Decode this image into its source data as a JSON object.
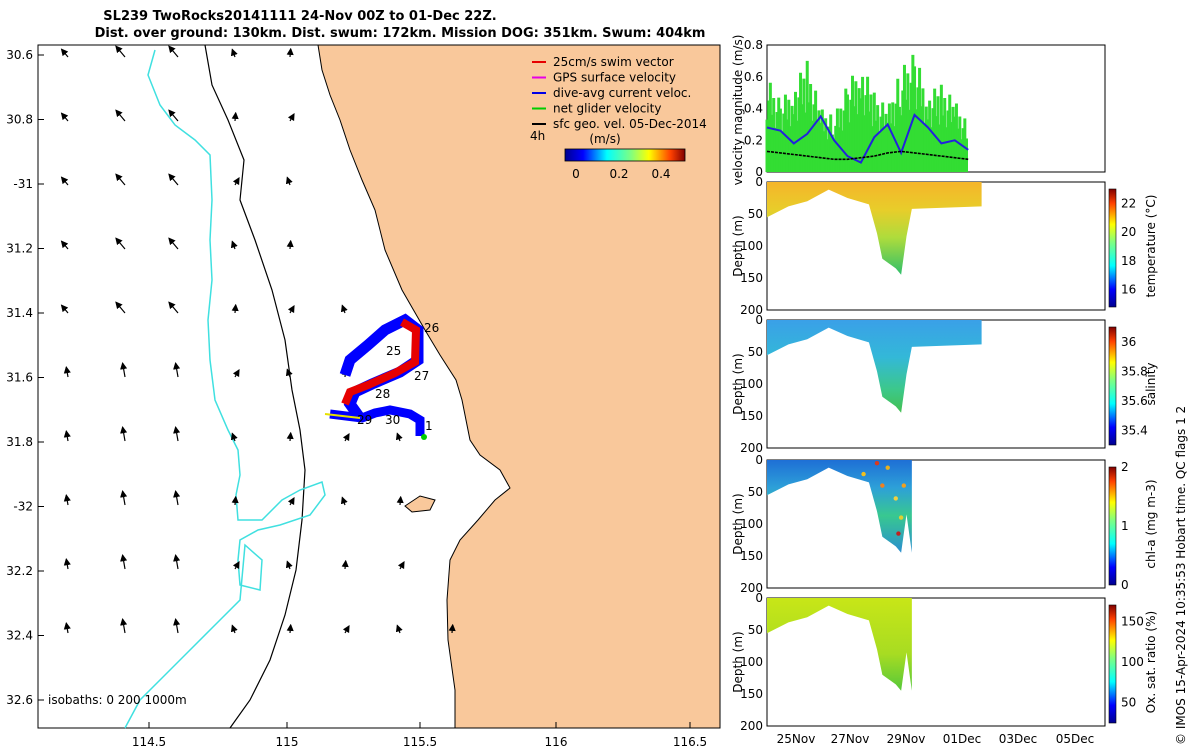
{
  "header": {
    "line1": "SL239 TwoRocks20141111 24-Nov 00Z to 01-Dec 22Z.",
    "line2": "Dist. over ground: 130km. Dist. swum: 172km. Mission DOG: 351km. Swum: 404km"
  },
  "map": {
    "lat_ticks": [
      "30.6",
      "30.8",
      "-31",
      "31.2",
      "31.4",
      "31.6",
      "31.8",
      "-32",
      "32.2",
      "32.4",
      "32.6"
    ],
    "lon_ticks": [
      "114.5",
      "115",
      "115.5",
      "116",
      "116.5"
    ],
    "isobaths_label": "isobaths: 0   200  1000m",
    "day_labels": [
      "25",
      "26",
      "27",
      "28",
      "29",
      "30",
      "1"
    ],
    "legend": [
      {
        "label": "25cm/s swim vector",
        "color": "#e60000"
      },
      {
        "label": "GPS surface velocity",
        "color": "#e600e6"
      },
      {
        "label": "dive-avg current veloc.",
        "color": "#0000e6"
      },
      {
        "label": "net glider velocity",
        "color": "#00cc00"
      },
      {
        "label": "sfc geo. vel. 05-Dec-2014",
        "color": "#000000"
      }
    ],
    "colorbar": {
      "label": "(m/s)",
      "interval": "4h",
      "ticks": [
        "0",
        "0.2",
        "0.4"
      ]
    },
    "colors": {
      "land": "#f9c89b",
      "coast": "#000000",
      "isobath200": "#000000",
      "isobath1000": "#40e0e0"
    }
  },
  "chart_data": [
    {
      "type": "line",
      "title": "",
      "ylabel": "velocity magnitude (m/s)",
      "ylim": [
        0,
        0.8
      ],
      "yticks": [
        "0",
        "0.2",
        "0.4",
        "0.6",
        "0.8"
      ],
      "x_days": [
        24.0,
        24.5,
        25.0,
        25.5,
        26.0,
        26.5,
        27.0,
        27.5,
        28.0,
        28.5,
        29.0,
        29.5,
        30.0,
        30.5,
        31.0,
        31.5
      ],
      "series": [
        {
          "name": "dive-avg current",
          "color": "#2222dd",
          "values": [
            0.28,
            0.26,
            0.18,
            0.24,
            0.35,
            0.2,
            0.1,
            0.06,
            0.22,
            0.3,
            0.12,
            0.36,
            0.28,
            0.18,
            0.2,
            0.14
          ]
        },
        {
          "name": "sfc geo. vel.",
          "color": "#000000",
          "values": [
            0.13,
            0.12,
            0.11,
            0.1,
            0.09,
            0.08,
            0.08,
            0.09,
            0.1,
            0.12,
            0.13,
            0.12,
            0.11,
            0.1,
            0.09,
            0.08
          ]
        },
        {
          "name": "net glider velocity",
          "color": "#33dd33",
          "values": [
            0.6,
            0.45,
            0.55,
            0.7,
            0.4,
            0.35,
            0.55,
            0.7,
            0.5,
            0.4,
            0.65,
            0.75,
            0.5,
            0.55,
            0.45,
            0.3
          ]
        }
      ]
    },
    {
      "type": "heatmap",
      "ylabel": "Depth (m)",
      "clabel": "temperature (°C)",
      "yticks": [
        "0",
        "50",
        "100",
        "150",
        "200"
      ],
      "cticks": [
        "22",
        "20",
        "18",
        "16"
      ],
      "crange": [
        14.8,
        23
      ]
    },
    {
      "type": "heatmap",
      "ylabel": "Depth (m)",
      "clabel": "salinity",
      "yticks": [
        "0",
        "50",
        "100",
        "150",
        "200"
      ],
      "cticks": [
        "36",
        "35.8",
        "35.6",
        "35.4"
      ],
      "crange": [
        35.3,
        36.1
      ]
    },
    {
      "type": "heatmap",
      "ylabel": "Depth (m)",
      "clabel": "chl-a (mg m-3)",
      "yticks": [
        "0",
        "50",
        "100",
        "150",
        "200"
      ],
      "cticks": [
        "2",
        "1",
        "0"
      ],
      "crange": [
        0,
        2
      ]
    },
    {
      "type": "heatmap",
      "ylabel": "Depth (m)",
      "clabel": "Ox. sat. ratio (%)",
      "yticks": [
        "0",
        "50",
        "100",
        "150",
        "200"
      ],
      "cticks": [
        "150",
        "100",
        "50"
      ],
      "crange": [
        25,
        170
      ]
    }
  ],
  "time_axis": {
    "ticks": [
      "25Nov",
      "27Nov",
      "29Nov",
      "01Dec",
      "03Dec",
      "05Dec"
    ]
  },
  "footer": {
    "credit": "© IMOS 15-Apr-2024 10:35:53 Hobart time. QC flags 1  2"
  }
}
